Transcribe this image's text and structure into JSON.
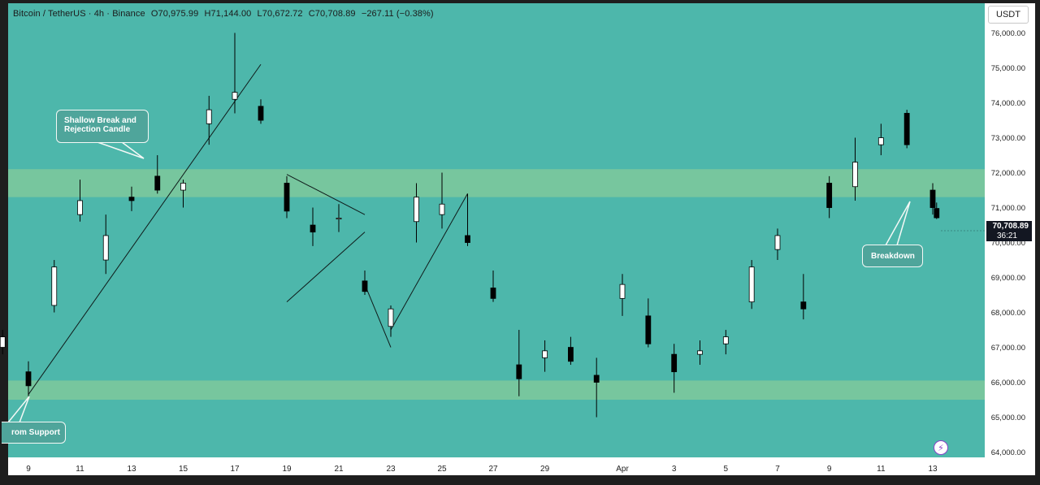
{
  "header": {
    "symbol": "Bitcoin / TetherUS · 4h · Binance",
    "open": "O70,975.99",
    "high": "H71,144.00",
    "low": "L70,672.72",
    "close": "C70,708.89",
    "change": "−267.11 (−0.38%)"
  },
  "unit_label": "USDT",
  "last_price": {
    "value": "70,708.89",
    "countdown": "36:21"
  },
  "annotations": {
    "shallow_break": "Shallow Break and\nRejection Candle",
    "breakdown": "Breakdown",
    "from_support": "rom Support"
  },
  "icons": {
    "bolt": "lightning-bolt-icon"
  },
  "colors": {
    "background": "#4db7ab",
    "zone": "#7bc79c",
    "candle_up": "#ffffff",
    "candle_down": "#000000",
    "axis_bg": "#ffffff",
    "frame": "#1e1e1e"
  },
  "chart_data": {
    "type": "candlestick",
    "title": "Bitcoin / TetherUS · 4h · Binance",
    "unit": "USDT",
    "x_ticks": [
      "9",
      "11",
      "13",
      "15",
      "17",
      "19",
      "21",
      "23",
      "25",
      "27",
      "29",
      "Apr",
      "3",
      "5",
      "7",
      "9",
      "11",
      "13"
    ],
    "y_ticks": [
      "76,000.00",
      "75,000.00",
      "74,000.00",
      "73,000.00",
      "72,000.00",
      "71,000.00",
      "70,000.00",
      "69,000.00",
      "68,000.00",
      "67,000.00",
      "66,000.00",
      "65,000.00",
      "64,000.00"
    ],
    "ylim": [
      63850,
      76850
    ],
    "grid": false,
    "zones": [
      {
        "low": 71300,
        "high": 72100
      },
      {
        "low": 65500,
        "high": 66050
      }
    ],
    "trendlines": [
      {
        "from": [
          "Mar 9",
          65650
        ],
        "to": [
          "Mar 18",
          75100
        ]
      },
      {
        "from": [
          "Mar 19",
          71950
        ],
        "to": [
          "Mar 22",
          70800
        ]
      },
      {
        "from": [
          "Mar 19",
          68300
        ],
        "to": [
          "Mar 22",
          70300
        ]
      },
      {
        "from": [
          "Mar 22",
          68800
        ],
        "to": [
          "Mar 23",
          67000
        ]
      },
      {
        "from": [
          "Mar 23",
          67500
        ],
        "to": [
          "Mar 26",
          71400
        ]
      }
    ],
    "anchors": [
      {
        "label": "Mar 9",
        "x": 35
      },
      {
        "label": "Mar 17",
        "x": 289
      },
      {
        "label": "Mar 19",
        "x": 353
      },
      {
        "label": "Mar 23",
        "x": 481
      },
      {
        "label": "Mar 27",
        "x": 607
      },
      {
        "label": "Apr 1",
        "x": 766
      },
      {
        "label": "Apr 7",
        "x": 957
      },
      {
        "label": "Apr 13",
        "x": 1148
      }
    ],
    "ohlc_points": [
      [
        "Mar 8",
        67000,
        67500,
        66800,
        67300
      ],
      [
        "Mar 9",
        66300,
        66600,
        65600,
        65900
      ],
      [
        "Mar 10",
        68200,
        69500,
        68000,
        69300
      ],
      [
        "Mar 11",
        70800,
        71800,
        70600,
        71200
      ],
      [
        "Mar 12",
        69500,
        70800,
        69100,
        70200
      ],
      [
        "Mar 13",
        71300,
        71600,
        70900,
        71200
      ],
      [
        "Mar 14",
        71900,
        72500,
        71400,
        71500
      ],
      [
        "Mar 15",
        71500,
        71800,
        71000,
        71700
      ],
      [
        "Mar 16",
        73400,
        74200,
        72800,
        73800
      ],
      [
        "Mar 17",
        74100,
        76000,
        73700,
        74300
      ],
      [
        "Mar 18",
        73900,
        74100,
        73400,
        73500
      ],
      [
        "Mar 19",
        71700,
        71900,
        70700,
        70900
      ],
      [
        "Mar 20",
        70500,
        71000,
        69900,
        70300
      ],
      [
        "Mar 21",
        70700,
        71100,
        70300,
        70700
      ],
      [
        "Mar 22",
        68900,
        69200,
        68500,
        68600
      ],
      [
        "Mar 23",
        67600,
        68200,
        67300,
        68100
      ],
      [
        "Mar 24",
        70600,
        71700,
        70000,
        71300
      ],
      [
        "Mar 25",
        70800,
        72000,
        70400,
        71100
      ],
      [
        "Mar 26",
        70200,
        71400,
        69900,
        70000
      ],
      [
        "Mar 27",
        68700,
        69200,
        68300,
        68400
      ],
      [
        "Mar 28",
        66500,
        67500,
        65600,
        66100
      ],
      [
        "Mar 29",
        66700,
        67200,
        66300,
        66900
      ],
      [
        "Mar 30",
        67000,
        67300,
        66500,
        66600
      ],
      [
        "Mar 31",
        66200,
        66700,
        65000,
        66000
      ],
      [
        "Apr 1",
        68400,
        69100,
        67900,
        68800
      ],
      [
        "Apr 2",
        67900,
        68400,
        67000,
        67100
      ],
      [
        "Apr 3",
        66800,
        67100,
        65700,
        66300
      ],
      [
        "Apr 4",
        66800,
        67200,
        66500,
        66900
      ],
      [
        "Apr 5",
        67100,
        67500,
        66800,
        67300
      ],
      [
        "Apr 6",
        68300,
        69500,
        68100,
        69300
      ],
      [
        "Apr 7",
        69800,
        70400,
        69500,
        70200
      ],
      [
        "Apr 8",
        68300,
        69100,
        67800,
        68100
      ],
      [
        "Apr 9",
        71700,
        71900,
        70700,
        71000
      ],
      [
        "Apr 10",
        71600,
        73000,
        71200,
        72300
      ],
      [
        "Apr 11",
        72800,
        73400,
        72500,
        73000
      ],
      [
        "Apr 12",
        73700,
        73800,
        72700,
        72800
      ],
      [
        "Apr 13",
        71500,
        71700,
        70800,
        71000
      ],
      [
        "Apr 13 (last)",
        70976,
        71144,
        70673,
        70709
      ]
    ]
  }
}
